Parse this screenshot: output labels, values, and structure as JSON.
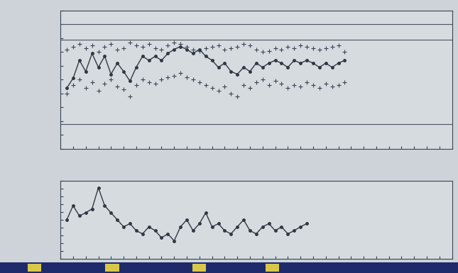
{
  "chart_data": [
    {
      "type": "line",
      "x": [
        1,
        2,
        3,
        4,
        5,
        6,
        7,
        8,
        9,
        10,
        11,
        12,
        13,
        14,
        15,
        16,
        17,
        18,
        19,
        20,
        21,
        22,
        23,
        24,
        25,
        26,
        27,
        28,
        29,
        30,
        31,
        32,
        33,
        34,
        35,
        36,
        37,
        38,
        39,
        40,
        41,
        42,
        43,
        44,
        45
      ],
      "series": [
        {
          "type": "line",
          "color": "#2f3842",
          "marker": "circle",
          "line_style": "solid",
          "values": [
            44,
            51,
            64,
            56,
            69,
            59,
            67,
            54,
            62,
            56,
            49,
            59,
            67,
            64,
            67,
            64,
            69,
            72,
            74,
            72,
            69,
            72,
            67,
            64,
            59,
            62,
            56,
            54,
            59,
            56,
            62,
            59,
            62,
            64,
            62,
            59,
            64,
            62,
            64,
            62,
            59,
            62,
            59,
            62,
            64
          ]
        },
        {
          "type": "scatter",
          "color": "#3a4450",
          "marker": "plus",
          "line_style": "none",
          "values": [
            72,
            74,
            76,
            73,
            75,
            70,
            74,
            76,
            72,
            73,
            77,
            75,
            74,
            76,
            73,
            72,
            75,
            77,
            76,
            74,
            72,
            71,
            73,
            74,
            75,
            72,
            73,
            74,
            76,
            75,
            72,
            70,
            71,
            73,
            72,
            74,
            73,
            75,
            74,
            73,
            72,
            73,
            74,
            75,
            70
          ]
        },
        {
          "type": "scatter",
          "color": "#3a4450",
          "marker": "plus",
          "line_style": "none",
          "values": [
            40,
            46,
            50,
            44,
            48,
            42,
            47,
            50,
            45,
            43,
            38,
            46,
            50,
            48,
            47,
            50,
            52,
            53,
            55,
            52,
            50,
            48,
            46,
            44,
            42,
            45,
            40,
            38,
            46,
            44,
            48,
            50,
            46,
            49,
            47,
            44,
            46,
            45,
            48,
            46,
            44,
            47,
            45,
            46,
            48
          ]
        }
      ],
      "hlines": [
        90,
        79,
        18
      ],
      "xlim": [
        0,
        62
      ],
      "ylim": [
        0,
        100
      ],
      "xticks": [
        0,
        2,
        4,
        6,
        8,
        10,
        12,
        14,
        16,
        18,
        20,
        22,
        24,
        26,
        28,
        30,
        32,
        34,
        36,
        38,
        40,
        42,
        44,
        46,
        48,
        50,
        52,
        54,
        56,
        58,
        60,
        62
      ],
      "yticks": [
        0,
        10,
        20,
        30,
        40,
        50,
        60,
        70,
        80,
        90,
        100
      ],
      "grid": false,
      "tick_labels": false
    },
    {
      "type": "line",
      "x": [
        1,
        2,
        3,
        4,
        5,
        6,
        7,
        8,
        9,
        10,
        11,
        12,
        13,
        14,
        15,
        16,
        17,
        18,
        19,
        20,
        21,
        22,
        23,
        24,
        25,
        26,
        27,
        28,
        29,
        30,
        31,
        32,
        33,
        34,
        35,
        36,
        37,
        38,
        39
      ],
      "series": [
        {
          "type": "line",
          "color": "#2f3842",
          "marker": "circle",
          "line_style": "solid",
          "values": [
            50,
            68,
            55,
            59,
            64,
            91,
            68,
            59,
            50,
            41,
            45,
            36,
            32,
            41,
            36,
            27,
            32,
            23,
            41,
            50,
            36,
            45,
            59,
            41,
            45,
            36,
            32,
            41,
            50,
            36,
            32,
            41,
            45,
            36,
            41,
            32,
            36,
            41,
            45
          ]
        }
      ],
      "xlim": [
        0,
        62
      ],
      "ylim": [
        0,
        100
      ],
      "xticks": [
        0,
        2,
        4,
        6,
        8,
        10,
        12,
        14,
        16,
        18,
        20,
        22,
        24,
        26,
        28,
        30,
        32,
        34,
        36,
        38,
        40,
        42,
        44,
        46,
        48,
        50,
        52,
        54,
        56,
        58,
        60,
        62
      ],
      "yticks": [
        0,
        10,
        20,
        30,
        40,
        50,
        60,
        70,
        80,
        90,
        100
      ],
      "grid": false,
      "tick_labels": false
    }
  ]
}
